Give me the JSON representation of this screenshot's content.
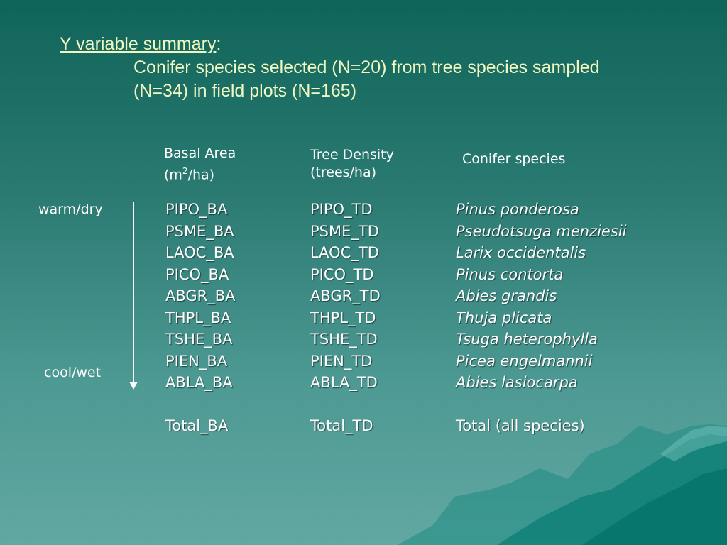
{
  "title": {
    "underlined": "Y variable summary",
    "colon": ":",
    "line2": "Conifer species selected (N=20) from tree species sampled",
    "line3": "(N=34) in field plots (N=165)"
  },
  "headers": {
    "basal_area_line1": "Basal Area",
    "basal_area_line2_pre": "(m",
    "basal_area_sup": "2",
    "basal_area_line2_post": "/ha)",
    "tree_density_line1": "Tree Density",
    "tree_density_line2": "(trees/ha)",
    "conifer": "Conifer species"
  },
  "gradient_labels": {
    "top": "warm/dry",
    "bottom": "cool/wet"
  },
  "basal_area": [
    "PIPO_BA",
    "PSME_BA",
    "LAOC_BA",
    "PICO_BA",
    "ABGR_BA",
    "THPL_BA",
    "TSHE_BA",
    "PIEN_BA",
    "ABLA_BA"
  ],
  "tree_density": [
    "PIPO_TD",
    "PSME_TD",
    "LAOC_TD",
    "PICO_TD",
    "ABGR_TD",
    "THPL_TD",
    "TSHE_TD",
    "PIEN_TD",
    "ABLA_TD"
  ],
  "species": [
    "Pinus ponderosa",
    "Pseudotsuga menziesii",
    "Larix occidentalis",
    "Pinus contorta",
    "Abies grandis",
    "Thuja plicata",
    "Tsuga heterophylla",
    "Picea engelmannii",
    "Abies lasiocarpa"
  ],
  "totals": {
    "basal_area": "Total_BA",
    "tree_density": "Total_TD",
    "species": "Total (all species)"
  },
  "colors": {
    "title": "#f2f8c0",
    "text": "#ffffff",
    "background_top": "#0f6459",
    "background_bottom": "#62a7a2"
  }
}
